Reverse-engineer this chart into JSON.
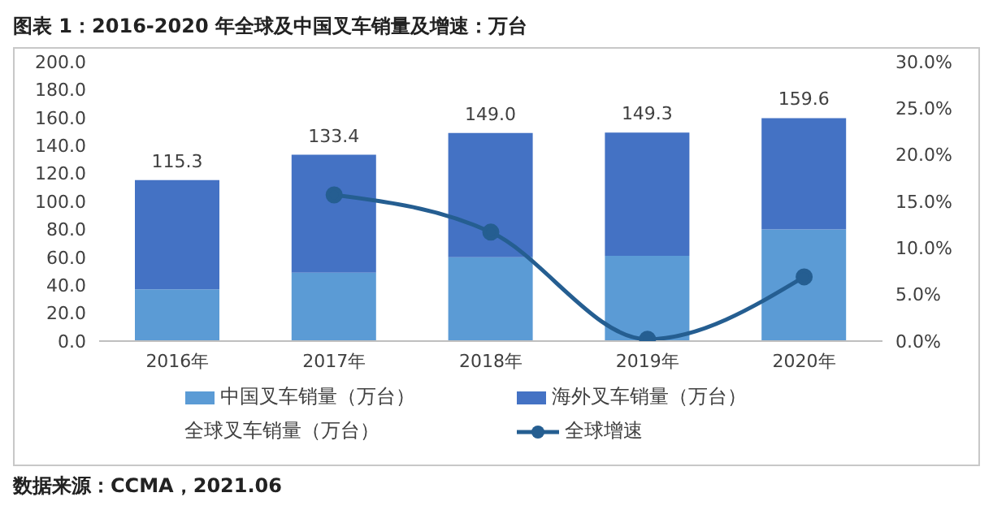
{
  "chart_data": {
    "type": "bar",
    "title": "图表 1：2016-2020 年全球及中国叉车销量及增速：万台",
    "categories": [
      "2016年",
      "2017年",
      "2018年",
      "2019年",
      "2020年"
    ],
    "stacked": true,
    "series": [
      {
        "name": "中国叉车销量（万台）",
        "color": "#5b9bd5",
        "values": [
          37,
          49,
          60,
          61,
          80
        ]
      },
      {
        "name": "海外叉车销量（万台）",
        "color": "#4472c4",
        "values": [
          78.3,
          84.4,
          89.0,
          88.3,
          79.6
        ]
      },
      {
        "name": "全球叉车销量（万台）",
        "type": "line",
        "values": [
          null,
          null,
          null,
          null,
          null
        ]
      },
      {
        "name": "全球增速",
        "type": "line",
        "axis": "y2",
        "color": "#255e91",
        "marker": "circle",
        "values": [
          null,
          15.7,
          11.7,
          0.2,
          6.9
        ]
      }
    ],
    "totals": [
      "115.3",
      "133.4",
      "149.0",
      "149.3",
      "159.6"
    ],
    "ylim": [
      0,
      200
    ],
    "yticks": [
      {
        "value": 0,
        "label": "0.0"
      },
      {
        "value": 20,
        "label": "20.0"
      },
      {
        "value": 40,
        "label": "40.0"
      },
      {
        "value": 60,
        "label": "60.0"
      },
      {
        "value": 80,
        "label": "80.0"
      },
      {
        "value": 100,
        "label": "100.0"
      },
      {
        "value": 120,
        "label": "120.0"
      },
      {
        "value": 140,
        "label": "140.0"
      },
      {
        "value": 160,
        "label": "160.0"
      },
      {
        "value": 180,
        "label": "180.0"
      },
      {
        "value": 200,
        "label": "200.0"
      }
    ],
    "y2lim": [
      0,
      30
    ],
    "y2ticks": [
      {
        "value": 0,
        "label": "0.0%"
      },
      {
        "value": 5,
        "label": "5.0%"
      },
      {
        "value": 10,
        "label": "10.0%"
      },
      {
        "value": 15,
        "label": "15.0%"
      },
      {
        "value": 20,
        "label": "20.0%"
      },
      {
        "value": 25,
        "label": "25.0%"
      },
      {
        "value": 30,
        "label": "30.0%"
      }
    ],
    "legend": "bottom",
    "annotations": [
      "数据来源：CCMA，2021.06"
    ]
  }
}
